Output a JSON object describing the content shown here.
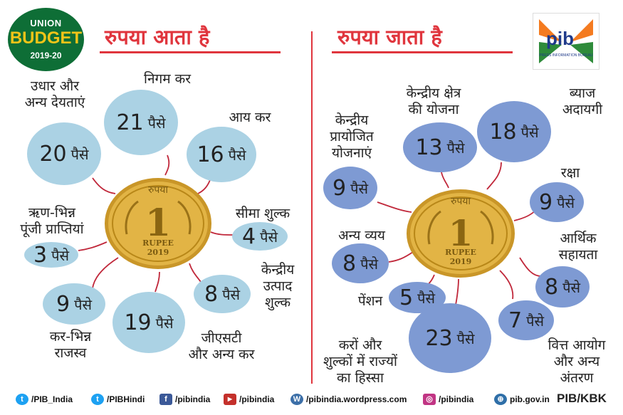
{
  "logo": {
    "line1": "UNION",
    "line2": "BUDGET",
    "line3": "2019-20"
  },
  "left_heading": "रुपया आता है",
  "right_heading": "रुपया जाता है",
  "unit": "पैसे",
  "pib_logo": {
    "text": "pib",
    "subtext": "PRESS INFORMATION BUREAU"
  },
  "coin": {
    "top_text": "रुपया",
    "denomination": "1",
    "bottom_text": "RUPEE",
    "year": "2019"
  },
  "income": [
    {
      "label": "निगम कर",
      "value": "21"
    },
    {
      "label": "उधार और\nअन्य देयताएं",
      "value": "20"
    },
    {
      "label": "आय कर",
      "value": "16"
    },
    {
      "label": "सीमा शुल्क",
      "value": "4"
    },
    {
      "label": "ऋण-भिन्न\nपूंजी प्राप्तियां",
      "value": "3"
    },
    {
      "label": "केन्द्रीय\nउत्पाद\nशुल्क",
      "value": "8"
    },
    {
      "label": "कर-भिन्न\nराजस्व",
      "value": "9"
    },
    {
      "label": "जीएसटी\nऔर अन्य कर",
      "value": "19"
    }
  ],
  "expenditure": [
    {
      "label": "केन्द्रीय क्षेत्र\nकी योजना",
      "value": "13"
    },
    {
      "label": "ब्याज\nअदायगी",
      "value": "18"
    },
    {
      "label": "केन्द्रीय\nप्रायोजित\nयोजनाएं",
      "value": "9"
    },
    {
      "label": "रक्षा",
      "value": "9"
    },
    {
      "label": "अन्य व्यय",
      "value": "8"
    },
    {
      "label": "आर्थिक\nसहायता",
      "value": "8"
    },
    {
      "label": "पेंशन",
      "value": "5"
    },
    {
      "label": "वित्त आयोग\nऔर अन्य\nअंतरण",
      "value": "7"
    },
    {
      "label": "करों और\nशुल्कों में राज्यों\nका हिस्सा",
      "value": "23"
    }
  ],
  "footer": {
    "items": [
      {
        "icon": "twitter-icon",
        "text": "/PIB_India"
      },
      {
        "icon": "twitter-icon",
        "text": "/PIBHindi"
      },
      {
        "icon": "facebook-icon",
        "text": "/pibindia"
      },
      {
        "icon": "youtube-icon",
        "text": "/pibindia"
      },
      {
        "icon": "wordpress-icon",
        "text": "/pibindia.wordpress.com"
      },
      {
        "icon": "instagram-icon",
        "text": "/pibindia"
      },
      {
        "icon": "globe-icon",
        "text": "pib.gov.in"
      }
    ],
    "credit": "PIB/KBK"
  },
  "colors": {
    "accent": "#e0353d",
    "light_bubble": "#abd2e4",
    "dark_bubble": "#7e9ad3",
    "coin": "#d9a935"
  }
}
